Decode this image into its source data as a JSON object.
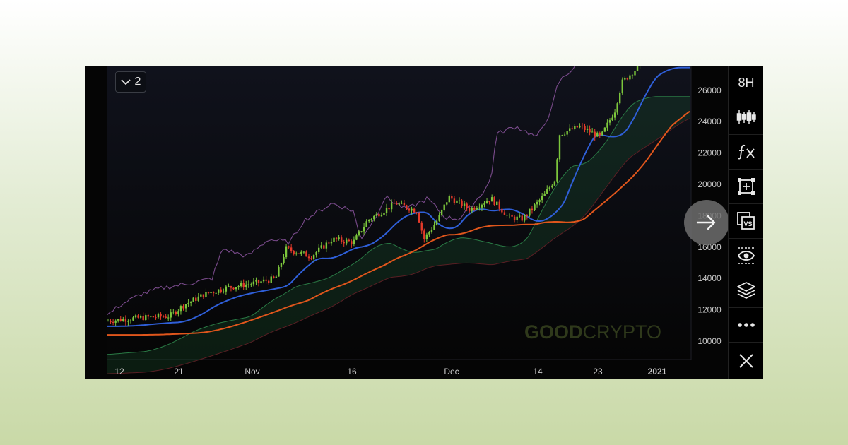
{
  "chart": {
    "interval_dropdown": "2",
    "watermark": {
      "bold": "GOOD",
      "light": "CRYPTO"
    },
    "y_ticks": [
      26000,
      24000,
      22000,
      20000,
      18000,
      16000,
      14000,
      12000,
      10000
    ],
    "x_ticks": [
      {
        "label": "12",
        "bold": false
      },
      {
        "label": "21",
        "bold": false
      },
      {
        "label": "Nov",
        "bold": false
      },
      {
        "label": "16",
        "bold": false
      },
      {
        "label": "Dec",
        "bold": false
      },
      {
        "label": "14",
        "bold": false
      },
      {
        "label": "23",
        "bold": false
      },
      {
        "label": "2021",
        "bold": true
      }
    ]
  },
  "toolbar": {
    "timeframe": "8H",
    "icons": [
      "candlestick-icon",
      "function-icon",
      "crosshair-add-icon",
      "compare-vs-icon",
      "eye-icon",
      "layers-icon",
      "more-icon",
      "close-icon"
    ]
  },
  "colors": {
    "bull": "#7cc63c",
    "bear": "#e53a2a",
    "blue_line": "#2f5fd8",
    "orange_line": "#e0561c",
    "purple_line": "#7a4b8c",
    "cloud_green": "#1d5a34",
    "cloud_red": "#5a1f24"
  }
}
